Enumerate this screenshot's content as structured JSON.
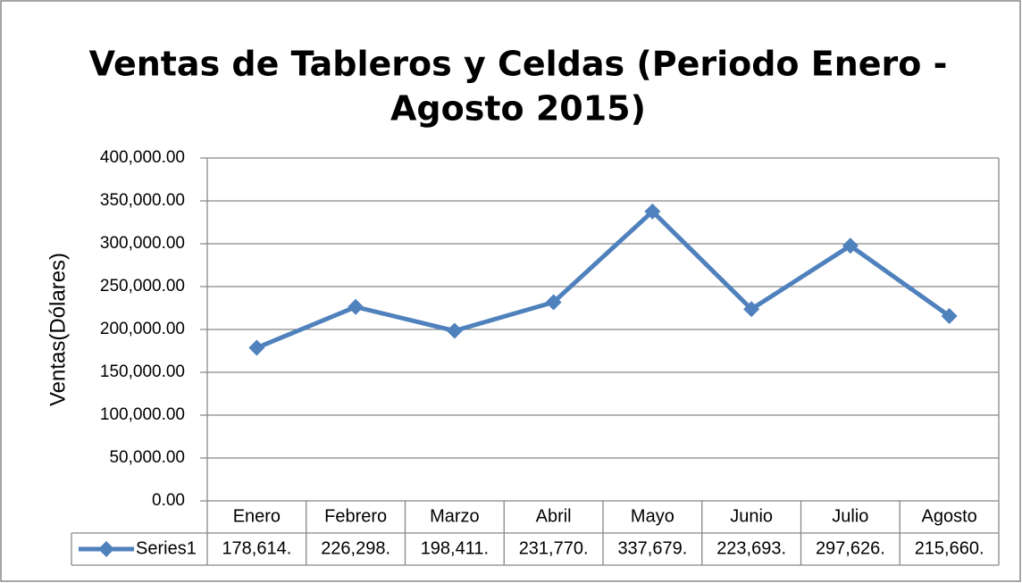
{
  "chart_data": {
    "type": "line",
    "title": [
      "Ventas de Tableros y Celdas (Periodo Enero -",
      "Agosto 2015)"
    ],
    "y_label": "Ventas(Dólares)",
    "categories": [
      "Enero",
      "Febrero",
      "Marzo",
      "Abril",
      "Mayo",
      "Junio",
      "Julio",
      "Agosto"
    ],
    "series": [
      {
        "name": "Series1",
        "color": "#4f81bd",
        "values": [
          178614,
          226298,
          198411,
          231770,
          337679,
          223693,
          297626,
          215660
        ],
        "value_labels": [
          "178,614.",
          "226,298.",
          "198,411.",
          "231,770.",
          "337,679.",
          "223,693.",
          "297,626.",
          "215,660."
        ]
      }
    ],
    "ylim": [
      0,
      400000
    ],
    "yticks": [
      {
        "value": 0,
        "label": "0.00"
      },
      {
        "value": 50000,
        "label": "50,000.00"
      },
      {
        "value": 100000,
        "label": "100,000.00"
      },
      {
        "value": 150000,
        "label": "150,000.00"
      },
      {
        "value": 200000,
        "label": "200,000.00"
      },
      {
        "value": 250000,
        "label": "250,000.00"
      },
      {
        "value": 300000,
        "label": "300,000.00"
      },
      {
        "value": 350000,
        "label": "350,000.00"
      },
      {
        "value": 400000,
        "label": "400,000.00"
      }
    ],
    "grid": true
  }
}
